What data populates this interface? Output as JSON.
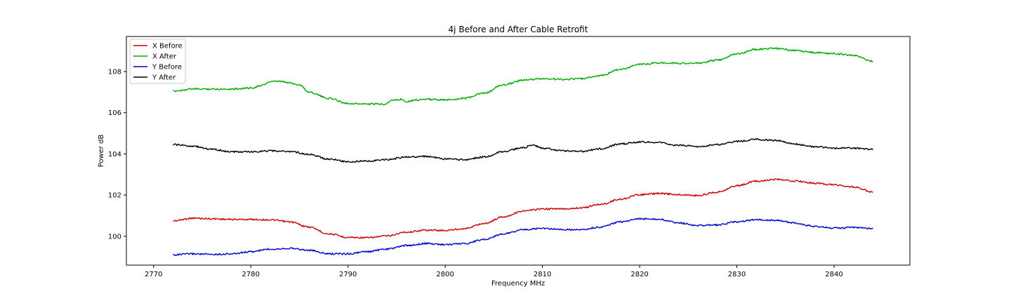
{
  "chart_data": {
    "type": "line",
    "title": "4j Before and After Cable Retrofit",
    "xlabel": "Frequency MHz",
    "ylabel": "Power dB",
    "xlim": [
      2767.2,
      2847.8
    ],
    "ylim": [
      98.6,
      109.7
    ],
    "xticks": [
      2770,
      2780,
      2790,
      2800,
      2810,
      2820,
      2830,
      2840
    ],
    "yticks": [
      100,
      102,
      104,
      106,
      108
    ],
    "grid": false,
    "legend_position": "top-left",
    "series": [
      {
        "name": "X Before",
        "color": "#cc0000",
        "points": [
          [
            2772,
            100.75
          ],
          [
            2774,
            100.88
          ],
          [
            2776,
            100.85
          ],
          [
            2778,
            100.82
          ],
          [
            2780,
            100.82
          ],
          [
            2782,
            100.8
          ],
          [
            2784,
            100.7
          ],
          [
            2786,
            100.45
          ],
          [
            2788,
            100.12
          ],
          [
            2790,
            99.95
          ],
          [
            2792,
            99.93
          ],
          [
            2794,
            100.02
          ],
          [
            2796,
            100.2
          ],
          [
            2798,
            100.3
          ],
          [
            2800,
            100.28
          ],
          [
            2802,
            100.38
          ],
          [
            2804,
            100.62
          ],
          [
            2806,
            100.95
          ],
          [
            2808,
            101.22
          ],
          [
            2810,
            101.33
          ],
          [
            2812,
            101.33
          ],
          [
            2814,
            101.38
          ],
          [
            2816,
            101.55
          ],
          [
            2818,
            101.8
          ],
          [
            2820,
            102.02
          ],
          [
            2822,
            102.08
          ],
          [
            2824,
            102.02
          ],
          [
            2826,
            101.98
          ],
          [
            2828,
            102.15
          ],
          [
            2830,
            102.45
          ],
          [
            2832,
            102.68
          ],
          [
            2834,
            102.75
          ],
          [
            2836,
            102.68
          ],
          [
            2838,
            102.58
          ],
          [
            2840,
            102.5
          ],
          [
            2842,
            102.4
          ],
          [
            2844,
            102.15
          ]
        ]
      },
      {
        "name": "X After",
        "color": "#00aa00",
        "points": [
          [
            2772,
            107.05
          ],
          [
            2774,
            107.15
          ],
          [
            2776,
            107.15
          ],
          [
            2778,
            107.15
          ],
          [
            2780,
            107.2
          ],
          [
            2781,
            107.3
          ],
          [
            2782,
            107.5
          ],
          [
            2783,
            107.52
          ],
          [
            2784,
            107.45
          ],
          [
            2785,
            107.35
          ],
          [
            2786,
            107.0
          ],
          [
            2788,
            106.7
          ],
          [
            2790,
            106.45
          ],
          [
            2792,
            106.42
          ],
          [
            2793.8,
            106.42
          ],
          [
            2794.5,
            106.6
          ],
          [
            2795.5,
            106.65
          ],
          [
            2796,
            106.55
          ],
          [
            2797,
            106.62
          ],
          [
            2798,
            106.65
          ],
          [
            2800,
            106.62
          ],
          [
            2802,
            106.7
          ],
          [
            2804,
            106.95
          ],
          [
            2806,
            107.35
          ],
          [
            2808,
            107.58
          ],
          [
            2810,
            107.65
          ],
          [
            2812,
            107.62
          ],
          [
            2814,
            107.65
          ],
          [
            2816,
            107.8
          ],
          [
            2818,
            108.1
          ],
          [
            2820,
            108.35
          ],
          [
            2822,
            108.42
          ],
          [
            2824,
            108.4
          ],
          [
            2826,
            108.4
          ],
          [
            2828,
            108.55
          ],
          [
            2830,
            108.85
          ],
          [
            2832,
            109.08
          ],
          [
            2834,
            109.12
          ],
          [
            2836,
            109.02
          ],
          [
            2838,
            108.92
          ],
          [
            2840,
            108.87
          ],
          [
            2842,
            108.78
          ],
          [
            2844,
            108.5
          ]
        ]
      },
      {
        "name": "Y Before",
        "color": "#0000cc",
        "points": [
          [
            2772,
            99.1
          ],
          [
            2774,
            99.15
          ],
          [
            2776,
            99.12
          ],
          [
            2778,
            99.15
          ],
          [
            2780,
            99.25
          ],
          [
            2782,
            99.38
          ],
          [
            2784,
            99.42
          ],
          [
            2786,
            99.32
          ],
          [
            2788,
            99.15
          ],
          [
            2790,
            99.15
          ],
          [
            2792,
            99.25
          ],
          [
            2794,
            99.38
          ],
          [
            2796,
            99.55
          ],
          [
            2798,
            99.65
          ],
          [
            2800,
            99.6
          ],
          [
            2802,
            99.65
          ],
          [
            2804,
            99.85
          ],
          [
            2806,
            100.12
          ],
          [
            2808,
            100.32
          ],
          [
            2810,
            100.38
          ],
          [
            2812,
            100.32
          ],
          [
            2814,
            100.32
          ],
          [
            2816,
            100.45
          ],
          [
            2818,
            100.7
          ],
          [
            2820,
            100.85
          ],
          [
            2822,
            100.82
          ],
          [
            2824,
            100.65
          ],
          [
            2826,
            100.52
          ],
          [
            2828,
            100.55
          ],
          [
            2830,
            100.7
          ],
          [
            2832,
            100.8
          ],
          [
            2834,
            100.78
          ],
          [
            2836,
            100.65
          ],
          [
            2838,
            100.48
          ],
          [
            2840,
            100.4
          ],
          [
            2842,
            100.42
          ],
          [
            2844,
            100.38
          ]
        ]
      },
      {
        "name": "Y After",
        "color": "#000000",
        "points": [
          [
            2772,
            104.45
          ],
          [
            2774,
            104.38
          ],
          [
            2776,
            104.22
          ],
          [
            2778,
            104.1
          ],
          [
            2780,
            104.1
          ],
          [
            2782,
            104.15
          ],
          [
            2784,
            104.12
          ],
          [
            2786,
            103.98
          ],
          [
            2788,
            103.75
          ],
          [
            2790,
            103.62
          ],
          [
            2792,
            103.65
          ],
          [
            2794,
            103.72
          ],
          [
            2796,
            103.85
          ],
          [
            2798,
            103.88
          ],
          [
            2800,
            103.75
          ],
          [
            2802,
            103.72
          ],
          [
            2804,
            103.85
          ],
          [
            2806,
            104.12
          ],
          [
            2808,
            104.3
          ],
          [
            2809,
            104.42
          ],
          [
            2810,
            104.28
          ],
          [
            2812,
            104.15
          ],
          [
            2814,
            104.12
          ],
          [
            2816,
            104.25
          ],
          [
            2818,
            104.48
          ],
          [
            2820,
            104.58
          ],
          [
            2822,
            104.55
          ],
          [
            2824,
            104.42
          ],
          [
            2826,
            104.35
          ],
          [
            2828,
            104.45
          ],
          [
            2830,
            104.6
          ],
          [
            2832,
            104.7
          ],
          [
            2834,
            104.65
          ],
          [
            2836,
            104.48
          ],
          [
            2838,
            104.35
          ],
          [
            2840,
            104.28
          ],
          [
            2842,
            104.28
          ],
          [
            2844,
            104.22
          ]
        ]
      }
    ]
  }
}
